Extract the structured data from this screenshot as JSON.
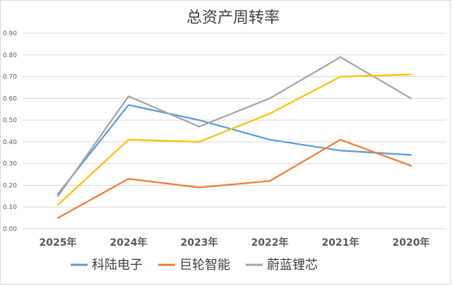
{
  "chart_data": {
    "type": "line",
    "title": "总资产周转率",
    "categories": [
      "2025年",
      "2024年",
      "2023年",
      "2022年",
      "2021年",
      "2020年"
    ],
    "yticks": [
      "0.00",
      "0.10",
      "0.20",
      "0.30",
      "0.40",
      "0.50",
      "0.60",
      "0.70",
      "0.80",
      "0.90"
    ],
    "ylim": [
      0,
      0.9
    ],
    "grid": true,
    "legend_position": "bottom",
    "series": [
      {
        "name": "科陆电子",
        "color": "#5b9bd5",
        "values": [
          0.16,
          0.57,
          0.5,
          0.41,
          0.36,
          0.34
        ]
      },
      {
        "name": "巨轮智能",
        "color": "#ed7d31",
        "values": [
          0.05,
          0.23,
          0.19,
          0.22,
          0.41,
          0.29
        ]
      },
      {
        "name": "蔚蓝锂芯",
        "color": "#a5a5a5",
        "values": [
          0.15,
          0.61,
          0.47,
          0.6,
          0.79,
          0.6
        ]
      },
      {
        "name": "",
        "color": "#ffc000",
        "values": [
          0.11,
          0.41,
          0.4,
          0.53,
          0.7,
          0.71
        ]
      }
    ]
  }
}
